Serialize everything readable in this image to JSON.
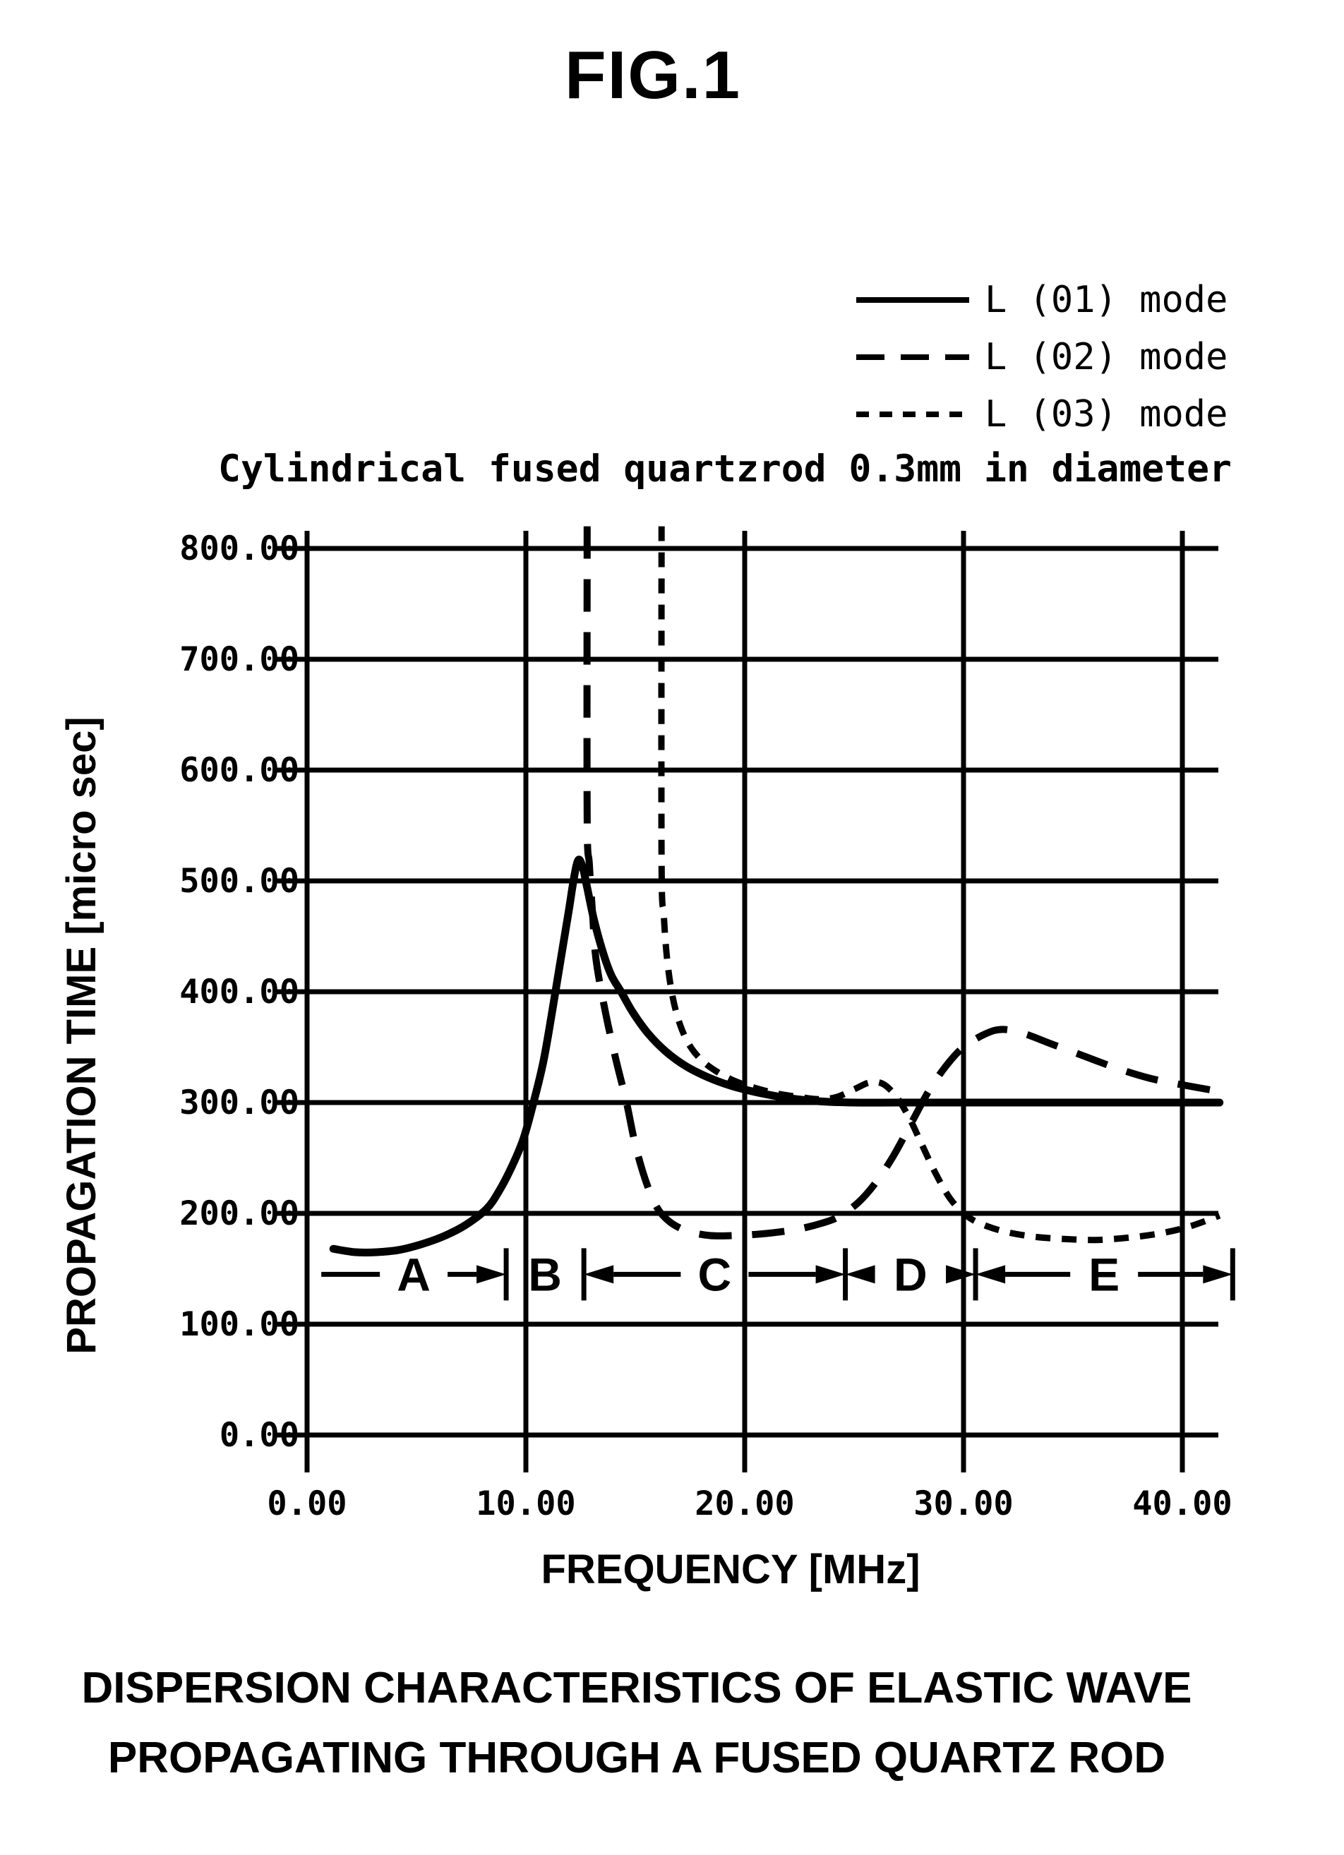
{
  "figure": {
    "title": "FIG.1"
  },
  "legend": {
    "items": [
      {
        "label": "L (01) mode",
        "style": "solid"
      },
      {
        "label": "L (02) mode",
        "style": "long-dash"
      },
      {
        "label": "L (03) mode",
        "style": "short-dash"
      }
    ]
  },
  "chart_data": {
    "type": "line",
    "title": "Cylindrical fused quartzrod 0.3mm in diameter",
    "xlabel": "FREQUENCY [MHz]",
    "ylabel": "PROPAGATION TIME [micro sec]",
    "xlim": [
      0,
      42.7
    ],
    "ylim": [
      0,
      830
    ],
    "grid": true,
    "legend_position": "top-right",
    "x_ticks": [
      {
        "value": 0,
        "label": "0.00"
      },
      {
        "value": 10,
        "label": "10.00"
      },
      {
        "value": 20,
        "label": "20.00"
      },
      {
        "value": 30,
        "label": "30.00"
      },
      {
        "value": 40,
        "label": "40.00"
      }
    ],
    "y_ticks": [
      {
        "value": 0,
        "label": "0.00"
      },
      {
        "value": 100,
        "label": "100.00"
      },
      {
        "value": 200,
        "label": "200.00"
      },
      {
        "value": 300,
        "label": "300.00"
      },
      {
        "value": 400,
        "label": "400.00"
      },
      {
        "value": 500,
        "label": "500.00"
      },
      {
        "value": 600,
        "label": "600.00"
      },
      {
        "value": 700,
        "label": "700.00"
      },
      {
        "value": 800,
        "label": "800.00"
      }
    ],
    "series": [
      {
        "name": "L (01) mode",
        "dash": "solid",
        "points": [
          [
            1.2,
            168
          ],
          [
            2.2,
            165
          ],
          [
            3.2,
            165
          ],
          [
            4.2,
            167
          ],
          [
            5.2,
            172
          ],
          [
            6.2,
            179
          ],
          [
            7.2,
            189
          ],
          [
            8.2,
            204
          ],
          [
            8.8,
            221
          ],
          [
            9.4,
            244
          ],
          [
            9.9,
            268
          ],
          [
            10.35,
            300
          ],
          [
            10.8,
            337
          ],
          [
            11.2,
            382
          ],
          [
            11.6,
            430
          ],
          [
            11.95,
            472
          ],
          [
            12.2,
            503
          ],
          [
            12.4,
            519
          ],
          [
            12.6,
            512
          ],
          [
            12.8,
            494
          ],
          [
            13.1,
            466
          ],
          [
            13.5,
            437
          ],
          [
            13.9,
            415
          ],
          [
            14.35,
            400
          ],
          [
            14.9,
            381
          ],
          [
            15.6,
            362
          ],
          [
            16.4,
            346
          ],
          [
            17.3,
            333
          ],
          [
            18.3,
            323
          ],
          [
            19.4,
            315
          ],
          [
            20.6,
            309
          ],
          [
            22,
            304
          ],
          [
            23.5,
            301
          ],
          [
            25,
            300
          ],
          [
            27,
            300
          ],
          [
            30,
            300
          ],
          [
            34,
            300
          ],
          [
            38,
            300
          ],
          [
            41.7,
            300
          ]
        ]
      },
      {
        "name": "L (02) mode",
        "dash": "long-dash",
        "points": [
          [
            12.8,
            820
          ],
          [
            12.8,
            560
          ],
          [
            12.9,
            515
          ],
          [
            13.05,
            470
          ],
          [
            13.2,
            430
          ],
          [
            13.6,
            385
          ],
          [
            14.1,
            340
          ],
          [
            14.6,
            300
          ],
          [
            15.0,
            262
          ],
          [
            15.5,
            228
          ],
          [
            16.0,
            205
          ],
          [
            16.6,
            192
          ],
          [
            17.4,
            184
          ],
          [
            18.4,
            180
          ],
          [
            19.5,
            180
          ],
          [
            20.5,
            181
          ],
          [
            21.5,
            183
          ],
          [
            22.5,
            186
          ],
          [
            23.5,
            191
          ],
          [
            24.3,
            197
          ],
          [
            25.2,
            210
          ],
          [
            26,
            228
          ],
          [
            26.8,
            252
          ],
          [
            27.6,
            281
          ],
          [
            28.4,
            310
          ],
          [
            29.2,
            333
          ],
          [
            30,
            350
          ],
          [
            31,
            362
          ],
          [
            31.8,
            366
          ],
          [
            32.8,
            362
          ],
          [
            34,
            353
          ],
          [
            35.5,
            342
          ],
          [
            37,
            331
          ],
          [
            38.5,
            322
          ],
          [
            40,
            316
          ],
          [
            41.7,
            310
          ]
        ]
      },
      {
        "name": "L (03) mode",
        "dash": "short-dash",
        "points": [
          [
            16.2,
            820
          ],
          [
            16.2,
            520
          ],
          [
            16.3,
            470
          ],
          [
            16.45,
            430
          ],
          [
            16.7,
            396
          ],
          [
            17.05,
            370
          ],
          [
            17.5,
            351
          ],
          [
            18.1,
            337
          ],
          [
            18.8,
            327
          ],
          [
            19.6,
            319
          ],
          [
            20.5,
            313
          ],
          [
            21.5,
            308
          ],
          [
            22.5,
            305
          ],
          [
            23.4,
            303
          ],
          [
            24.2,
            305
          ],
          [
            25,
            312
          ],
          [
            25.7,
            318
          ],
          [
            26.3,
            317
          ],
          [
            26.9,
            306
          ],
          [
            27.5,
            287
          ],
          [
            28.1,
            262
          ],
          [
            28.7,
            237
          ],
          [
            29.4,
            213
          ],
          [
            30.2,
            197
          ],
          [
            31,
            189
          ],
          [
            32,
            183
          ],
          [
            33.2,
            179
          ],
          [
            34.5,
            177
          ],
          [
            36,
            176
          ],
          [
            37.5,
            178
          ],
          [
            39,
            182
          ],
          [
            40.3,
            188
          ],
          [
            41.7,
            198
          ]
        ]
      }
    ],
    "regions": [
      {
        "label": "A",
        "from": 0.65,
        "to": 9.1,
        "arrows": "right"
      },
      {
        "label": "B",
        "from": 9.1,
        "to": 12.65,
        "arrows": "none"
      },
      {
        "label": "C",
        "from": 12.65,
        "to": 24.6,
        "arrows": "both"
      },
      {
        "label": "D",
        "from": 24.6,
        "to": 30.55,
        "arrows": "both"
      },
      {
        "label": "E",
        "from": 30.55,
        "to": 42.3,
        "arrows": "both"
      }
    ],
    "region_marker_t": 145
  },
  "caption": {
    "line1": "DISPERSION CHARACTERISTICS OF ELASTIC WAVE",
    "line2": "PROPAGATING THROUGH A FUSED QUARTZ ROD"
  },
  "colors": {
    "ink": "#000000",
    "paper": "#ffffff"
  }
}
